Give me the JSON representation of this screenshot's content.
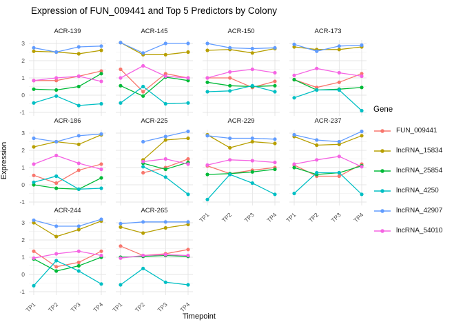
{
  "chart_data": {
    "type": "line",
    "title": "Expression of FUN_009441 and Top 5 Predictors by Colony",
    "xlabel": "Timepoint",
    "ylabel": "Expression",
    "x_tick_labels": [
      "TP1",
      "TP2",
      "TP3",
      "TP4"
    ],
    "y_tick_labels": [
      "3",
      "2",
      "1",
      "0",
      "-1"
    ],
    "ylim": [
      -1,
      3
    ],
    "grid": true,
    "legend": {
      "title": "Gene",
      "position": "right",
      "entries": [
        {
          "label": "FUN_009441",
          "color": "#F8766D"
        },
        {
          "label": "lncRNA_15834",
          "color": "#B79F00"
        },
        {
          "label": "lncRNA_25854",
          "color": "#00BA38"
        },
        {
          "label": "lncRNA_4250",
          "color": "#00BFC4"
        },
        {
          "label": "lncRNA_42907",
          "color": "#619CFF"
        },
        {
          "label": "lncRNA_54010",
          "color": "#F564E3"
        }
      ]
    },
    "facets": [
      {
        "name": "ACR-139",
        "series": [
          {
            "name": "FUN_009441",
            "values": [
              0.85,
              0.85,
              1.1,
              1.4
            ]
          },
          {
            "name": "lncRNA_15834",
            "values": [
              2.55,
              2.5,
              2.4,
              2.6
            ]
          },
          {
            "name": "lncRNA_25854",
            "values": [
              0.35,
              0.3,
              0.5,
              1.25
            ]
          },
          {
            "name": "lncRNA_4250",
            "values": [
              -0.45,
              -0.05,
              -0.6,
              -0.5
            ]
          },
          {
            "name": "lncRNA_42907",
            "values": [
              2.75,
              2.5,
              2.8,
              2.85
            ]
          },
          {
            "name": "lncRNA_54010",
            "values": [
              0.85,
              1.0,
              1.1,
              0.8
            ]
          }
        ]
      },
      {
        "name": "ACR-145",
        "series": [
          {
            "name": "FUN_009441",
            "values": [
              1.5,
              0.2,
              1.25,
              1.0
            ]
          },
          {
            "name": "lncRNA_15834",
            "values": [
              3.05,
              2.35,
              2.35,
              2.5
            ]
          },
          {
            "name": "lncRNA_25854",
            "values": [
              0.55,
              -0.05,
              1.05,
              0.85
            ]
          },
          {
            "name": "lncRNA_4250",
            "values": [
              -0.45,
              0.5,
              -0.5,
              -0.45
            ]
          },
          {
            "name": "lncRNA_42907",
            "values": [
              3.05,
              2.45,
              3.0,
              3.0
            ]
          },
          {
            "name": "lncRNA_54010",
            "values": [
              1.0,
              1.7,
              1.1,
              1.0
            ]
          }
        ]
      },
      {
        "name": "ACR-150",
        "series": [
          {
            "name": "FUN_009441",
            "values": [
              1.0,
              1.0,
              0.45,
              0.8
            ]
          },
          {
            "name": "lncRNA_15834",
            "values": [
              2.6,
              2.65,
              2.45,
              2.7
            ]
          },
          {
            "name": "lncRNA_25854",
            "values": [
              0.75,
              0.55,
              0.5,
              0.55
            ]
          },
          {
            "name": "lncRNA_4250",
            "values": [
              0.2,
              0.25,
              0.55,
              0.2
            ]
          },
          {
            "name": "lncRNA_42907",
            "values": [
              3.0,
              2.75,
              2.7,
              2.75
            ]
          },
          {
            "name": "lncRNA_54010",
            "values": [
              1.0,
              1.35,
              1.5,
              1.3
            ]
          }
        ]
      },
      {
        "name": "ACR-173",
        "series": [
          {
            "name": "FUN_009441",
            "values": [
              0.9,
              0.45,
              0.75,
              1.25
            ]
          },
          {
            "name": "lncRNA_15834",
            "values": [
              2.8,
              2.65,
              2.65,
              2.8
            ]
          },
          {
            "name": "lncRNA_25854",
            "values": [
              0.9,
              0.3,
              0.35,
              0.45
            ]
          },
          {
            "name": "lncRNA_4250",
            "values": [
              -0.15,
              0.3,
              0.3,
              -0.9
            ]
          },
          {
            "name": "lncRNA_42907",
            "values": [
              2.95,
              2.55,
              2.85,
              2.9
            ]
          },
          {
            "name": "lncRNA_54010",
            "values": [
              1.15,
              1.55,
              1.3,
              1.1
            ]
          }
        ]
      },
      {
        "name": "ACR-186",
        "series": [
          {
            "name": "FUN_009441",
            "values": [
              0.55,
              0.1,
              0.85,
              1.2
            ]
          },
          {
            "name": "lncRNA_15834",
            "values": [
              2.2,
              2.5,
              2.35,
              2.9
            ]
          },
          {
            "name": "lncRNA_25854",
            "values": [
              0.0,
              -0.2,
              -0.25,
              0.4
            ]
          },
          {
            "name": "lncRNA_4250",
            "values": [
              0.15,
              0.5,
              -0.25,
              -0.2
            ]
          },
          {
            "name": "lncRNA_42907",
            "values": [
              2.7,
              2.5,
              2.85,
              2.95
            ]
          },
          {
            "name": "lncRNA_54010",
            "values": [
              1.2,
              1.7,
              1.25,
              0.9
            ]
          }
        ]
      },
      {
        "name": "ACR-225",
        "series": [
          {
            "name": "FUN_009441",
            "values": [
              null,
              0.7,
              1.0,
              1.5
            ]
          },
          {
            "name": "lncRNA_15834",
            "values": [
              null,
              1.45,
              2.6,
              2.7
            ]
          },
          {
            "name": "lncRNA_25854",
            "values": [
              null,
              1.25,
              0.9,
              1.3
            ]
          },
          {
            "name": "lncRNA_4250",
            "values": [
              null,
              1.05,
              0.45,
              -0.55
            ]
          },
          {
            "name": "lncRNA_42907",
            "values": [
              null,
              2.5,
              2.8,
              3.1
            ]
          },
          {
            "name": "lncRNA_54010",
            "values": [
              null,
              1.35,
              1.5,
              1.2
            ]
          }
        ]
      },
      {
        "name": "ACR-229",
        "series": [
          {
            "name": "FUN_009441",
            "values": [
              1.1,
              0.65,
              0.85,
              1.0
            ]
          },
          {
            "name": "lncRNA_15834",
            "values": [
              2.9,
              2.15,
              2.5,
              2.4
            ]
          },
          {
            "name": "lncRNA_25854",
            "values": [
              0.6,
              0.65,
              0.75,
              0.9
            ]
          },
          {
            "name": "lncRNA_4250",
            "values": [
              -0.85,
              0.6,
              0.1,
              -0.55
            ]
          },
          {
            "name": "lncRNA_42907",
            "values": [
              2.85,
              2.7,
              2.7,
              2.65
            ]
          },
          {
            "name": "lncRNA_54010",
            "values": [
              1.15,
              1.45,
              1.4,
              1.3
            ]
          }
        ]
      },
      {
        "name": "ACR-237",
        "series": [
          {
            "name": "FUN_009441",
            "values": [
              1.15,
              0.5,
              0.5,
              1.2
            ]
          },
          {
            "name": "lncRNA_15834",
            "values": [
              2.8,
              2.3,
              2.35,
              2.85
            ]
          },
          {
            "name": "lncRNA_25854",
            "values": [
              1.0,
              0.6,
              0.7,
              1.1
            ]
          },
          {
            "name": "lncRNA_4250",
            "values": [
              -0.5,
              0.7,
              0.7,
              -0.55
            ]
          },
          {
            "name": "lncRNA_42907",
            "values": [
              2.9,
              2.6,
              2.5,
              3.1
            ]
          },
          {
            "name": "lncRNA_54010",
            "values": [
              1.2,
              1.45,
              1.65,
              1.05
            ]
          }
        ]
      },
      {
        "name": "ACR-244",
        "series": [
          {
            "name": "FUN_009441",
            "values": [
              1.35,
              0.45,
              0.7,
              1.35
            ]
          },
          {
            "name": "lncRNA_15834",
            "values": [
              3.0,
              2.2,
              2.6,
              3.1
            ]
          },
          {
            "name": "lncRNA_25854",
            "values": [
              0.9,
              0.2,
              0.5,
              1.0
            ]
          },
          {
            "name": "lncRNA_4250",
            "values": [
              -0.65,
              0.8,
              0.2,
              -0.55
            ]
          },
          {
            "name": "lncRNA_42907",
            "values": [
              3.15,
              2.8,
              2.8,
              3.2
            ]
          },
          {
            "name": "lncRNA_54010",
            "values": [
              0.95,
              1.2,
              1.35,
              1.1
            ]
          }
        ]
      },
      {
        "name": "ACR-265",
        "series": [
          {
            "name": "FUN_009441",
            "values": [
              1.65,
              1.1,
              1.2,
              1.45
            ]
          },
          {
            "name": "lncRNA_15834",
            "values": [
              2.75,
              2.4,
              2.7,
              2.9
            ]
          },
          {
            "name": "lncRNA_25854",
            "values": [
              1.0,
              1.05,
              1.1,
              1.05
            ]
          },
          {
            "name": "lncRNA_4250",
            "values": [
              -0.6,
              0.35,
              -0.45,
              -0.6
            ]
          },
          {
            "name": "lncRNA_42907",
            "values": [
              2.95,
              3.05,
              3.05,
              3.05
            ]
          },
          {
            "name": "lncRNA_54010",
            "values": [
              0.95,
              1.1,
              1.15,
              1.1
            ]
          }
        ]
      }
    ]
  }
}
